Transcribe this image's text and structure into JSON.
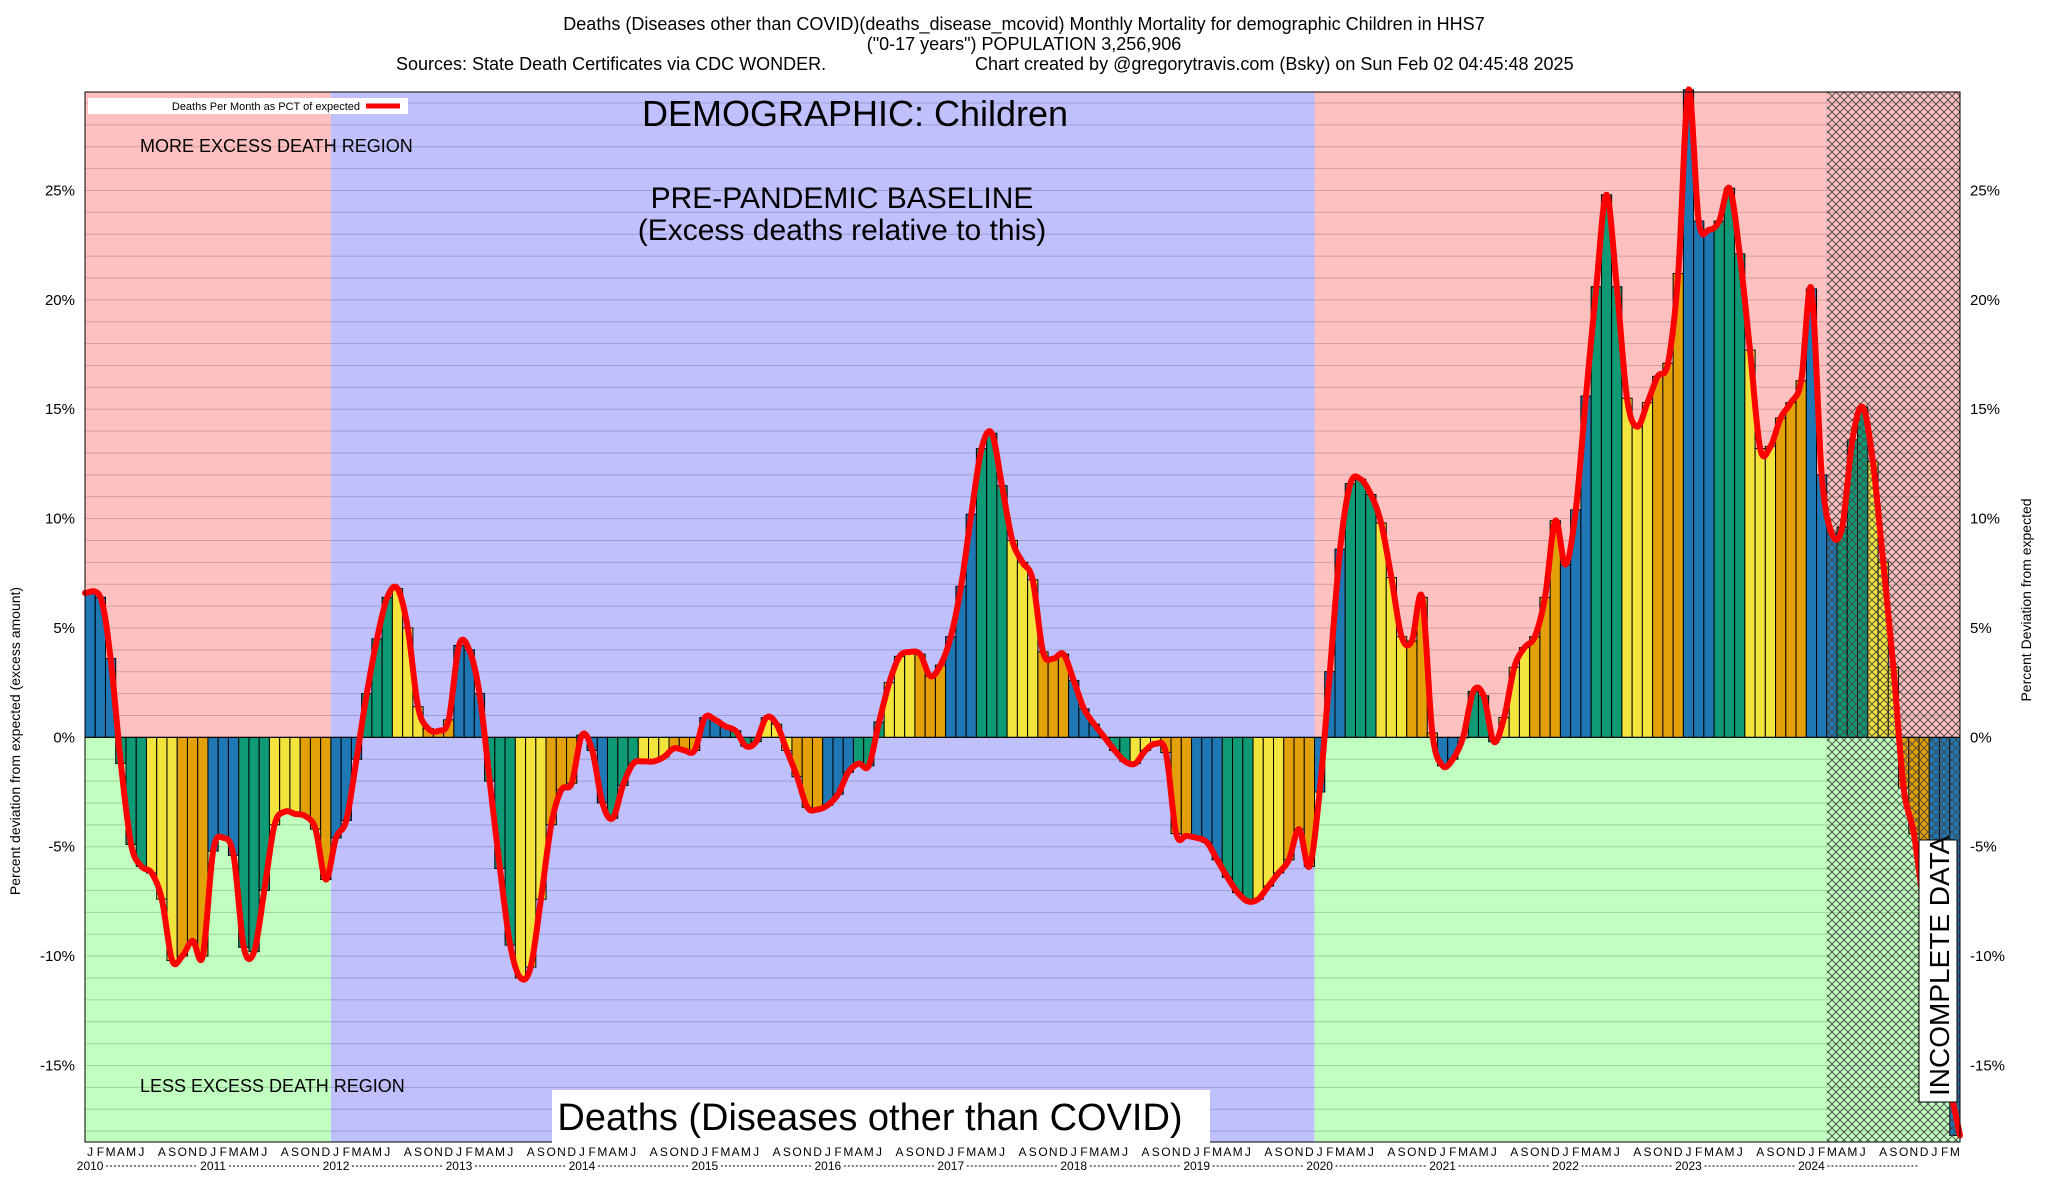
{
  "header": {
    "line1": "Deaths (Diseases other than COVID)(deaths_disease_mcovid) Monthly Mortality for demographic Children in HHS7",
    "line2": "(\"0-17 years\") POPULATION 3,256,906",
    "line3_sources": "Sources: State Death Certificates via CDC WONDER.",
    "line3_credit": "Chart created by @gregorytravis.com (Bsky) on Sun Feb 02 04:45:48 2025"
  },
  "annotations": {
    "demographic": "DEMOGRAPHIC: Children",
    "baseline_line1": "PRE-PANDEMIC BASELINE",
    "baseline_line2": "(Excess deaths relative to this)",
    "more_excess": "MORE EXCESS DEATH REGION",
    "less_excess": "LESS EXCESS DEATH REGION",
    "bottom_label": "Deaths (Diseases other than COVID)",
    "incomplete": "INCOMPLETE DATA"
  },
  "colors": {
    "excess_region": "#ffc0c0",
    "less_region": "#c0ffc0",
    "baseline_region": "#c0c0ff",
    "line": "#ff0000",
    "bar_palette": [
      "#1f77b4",
      "#0e9a74",
      "#f2e33d",
      "#e3a109"
    ]
  },
  "chart_data": {
    "type": "bar",
    "title": "Deaths (Diseases other than COVID)(deaths_disease_mcovid) Monthly Mortality for demographic Children in HHS7",
    "ylabel_left": "Percent deviation from expected (excess amount)",
    "ylabel_right": "Percent Deviation from expected",
    "legend": "Deaths Per Month as PCT of expected",
    "legend_position": "top-left",
    "ylim": [
      -18.5,
      29.5
    ],
    "yticks": [
      -15,
      -10,
      -5,
      0,
      5,
      10,
      15,
      20,
      25
    ],
    "ytick_labels": [
      "-15%",
      "-10%",
      "-5%",
      "0%",
      "5%",
      "10%",
      "15%",
      "20%",
      "25%"
    ],
    "grid": true,
    "start_month": "2010-01",
    "month_letters": [
      "J",
      "F",
      "M",
      "A",
      "M",
      "J",
      "J",
      "A",
      "S",
      "O",
      "N",
      "D"
    ],
    "years": [
      "2010",
      "2011",
      "2012",
      "2013",
      "2014",
      "2015",
      "2016",
      "2017",
      "2018",
      "2019",
      "2020",
      "2021",
      "2022",
      "2023",
      "2024"
    ],
    "baseline_period": [
      "2012-01",
      "2019-12"
    ],
    "incomplete_data_from": "2024-03",
    "values": [
      6.6,
      6.4,
      3.6,
      -1.2,
      -4.9,
      -5.9,
      -6.2,
      -7.4,
      -10.2,
      -10.0,
      -9.3,
      -10.0,
      -5.2,
      -4.6,
      -5.4,
      -9.6,
      -9.8,
      -7.0,
      -4.0,
      -3.4,
      -3.5,
      -3.6,
      -4.2,
      -6.5,
      -4.6,
      -3.8,
      -1.0,
      2.0,
      4.5,
      6.4,
      6.8,
      5.0,
      1.4,
      0.4,
      0.3,
      0.8,
      4.2,
      4.0,
      2.0,
      -2.0,
      -6.0,
      -9.5,
      -11.0,
      -10.5,
      -7.4,
      -4.0,
      -2.4,
      -2.1,
      0.1,
      -0.6,
      -3.0,
      -3.7,
      -2.2,
      -1.2,
      -1.1,
      -1.1,
      -0.9,
      -0.5,
      -0.6,
      -0.6,
      0.9,
      0.8,
      0.5,
      0.3,
      -0.4,
      -0.2,
      0.9,
      0.6,
      -0.6,
      -1.8,
      -3.2,
      -3.3,
      -3.1,
      -2.6,
      -1.6,
      -1.2,
      -1.3,
      0.7,
      2.5,
      3.7,
      3.9,
      3.8,
      2.8,
      3.3,
      4.6,
      6.9,
      10.2,
      13.2,
      13.9,
      11.5,
      9.0,
      8.0,
      7.2,
      3.9,
      3.6,
      3.8,
      2.6,
      1.3,
      0.6,
      0.0,
      -0.6,
      -1.1,
      -1.2,
      -0.6,
      -0.3,
      -0.7,
      -4.4,
      -4.5,
      -4.6,
      -4.8,
      -5.6,
      -6.4,
      -7.1,
      -7.5,
      -7.4,
      -6.8,
      -6.2,
      -5.6,
      -4.2,
      -5.9,
      -2.5,
      3.0,
      8.6,
      11.6,
      11.8,
      11.1,
      9.8,
      7.3,
      4.6,
      4.4,
      6.4,
      0.2,
      -1.3,
      -1.0,
      0.0,
      2.1,
      1.9,
      -0.2,
      0.9,
      3.2,
      4.1,
      4.6,
      6.4,
      9.9,
      7.9,
      10.4,
      15.6,
      20.6,
      24.8,
      20.6,
      15.5,
      14.2,
      15.3,
      16.5,
      17.1,
      21.2,
      29.6,
      23.6,
      23.2,
      23.6,
      25.1,
      22.1,
      17.7,
      13.2,
      13.3,
      14.6,
      15.3,
      16.3,
      20.5,
      12.0,
      9.3,
      9.6,
      13.6,
      15.1,
      12.6,
      8.0,
      3.2,
      -2.3,
      -4.4,
      -7.8,
      -10.2,
      -14.6,
      -18.2
    ]
  }
}
